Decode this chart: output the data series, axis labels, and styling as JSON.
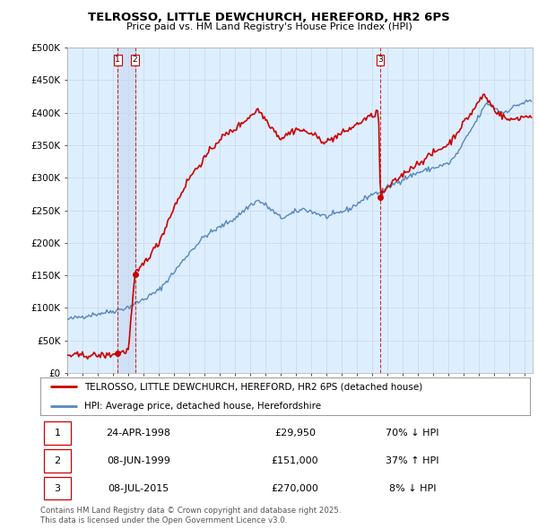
{
  "title": "TELROSSO, LITTLE DEWCHURCH, HEREFORD, HR2 6PS",
  "subtitle": "Price paid vs. HM Land Registry's House Price Index (HPI)",
  "ylabel_ticks": [
    "£0",
    "£50K",
    "£100K",
    "£150K",
    "£200K",
    "£250K",
    "£300K",
    "£350K",
    "£400K",
    "£450K",
    "£500K"
  ],
  "ytick_values": [
    0,
    50000,
    100000,
    150000,
    200000,
    250000,
    300000,
    350000,
    400000,
    450000,
    500000
  ],
  "ylim": [
    0,
    500000
  ],
  "xlim_start": 1995.0,
  "xlim_end": 2025.5,
  "sale_color": "#cc0000",
  "hpi_color": "#5588bb",
  "chart_bg": "#ddeeff",
  "sale_label": "TELROSSO, LITTLE DEWCHURCH, HEREFORD, HR2 6PS (detached house)",
  "hpi_label": "HPI: Average price, detached house, Herefordshire",
  "transaction1_date": 1998.31,
  "transaction1_price": 29950,
  "transaction2_date": 1999.44,
  "transaction2_price": 151000,
  "transaction3_date": 2015.52,
  "transaction3_price": 270000,
  "table_rows": [
    [
      "1",
      "24-APR-1998",
      "£29,950",
      "70% ↓ HPI"
    ],
    [
      "2",
      "08-JUN-1999",
      "£151,000",
      "37% ↑ HPI"
    ],
    [
      "3",
      "08-JUL-2015",
      "£270,000",
      "8% ↓ HPI"
    ]
  ],
  "footer": "Contains HM Land Registry data © Crown copyright and database right 2025.\nThis data is licensed under the Open Government Licence v3.0.",
  "background_color": "#ffffff",
  "grid_color": "#c8d8e8"
}
